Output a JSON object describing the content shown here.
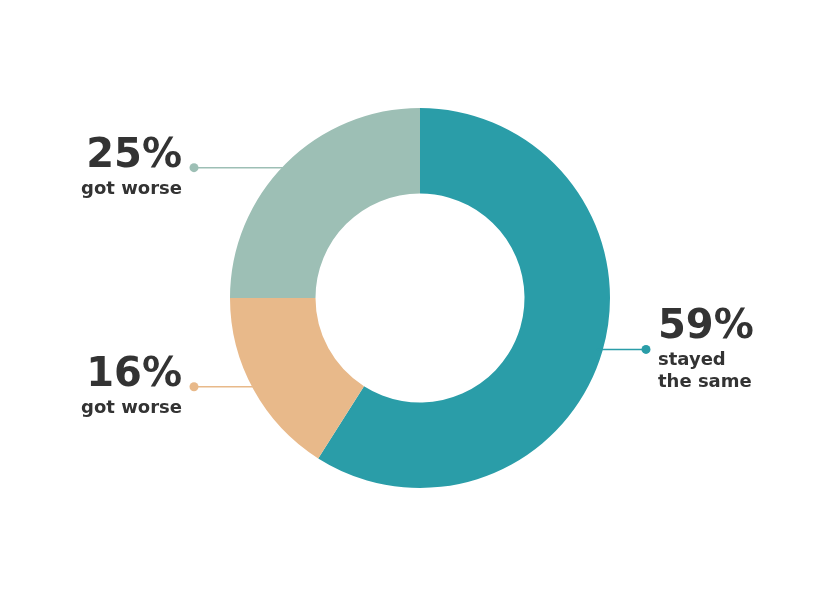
{
  "chart_data": {
    "type": "doughnut",
    "categories": [
      "stayed\nthe same",
      "got worse",
      "got worse"
    ],
    "values": [
      59,
      16,
      25
    ],
    "value_labels": [
      "59%",
      "16%",
      "25%"
    ],
    "colors": [
      "#2a9da8",
      "#e8b98a",
      "#9dbfb5"
    ],
    "data_labels": true
  }
}
